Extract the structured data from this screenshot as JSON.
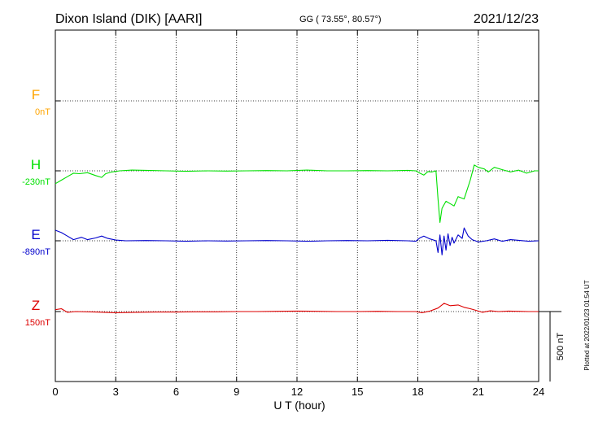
{
  "header": {
    "station": "Dixon Island (DIK)  [AARI]",
    "coords": "GG ( 73.55°,  80.57°)",
    "date": "2021/12/23"
  },
  "scale_label": "500 nT",
  "plotted_note": "Plotted at 2022/01/23 01:54 UT",
  "colors": {
    "F": "#ffa500",
    "H": "#00e000",
    "E": "#0000cc",
    "Z": "#dd0000",
    "grid": "#000000"
  },
  "chart_data": {
    "type": "line",
    "xlabel": "U T (hour)",
    "xlim": [
      0,
      24
    ],
    "x_ticks": [
      0,
      3,
      6,
      9,
      12,
      15,
      18,
      21,
      24
    ],
    "y_unit": "nT",
    "y_range_nT": 1500,
    "grid": true,
    "series": [
      {
        "key": "F",
        "name": "F",
        "baseline_label": "0nT",
        "baseline_nT": 0,
        "color": "#ffa500",
        "points": []
      },
      {
        "key": "H",
        "name": "H",
        "baseline_label": "-230nT",
        "baseline_nT": -230,
        "color": "#00e000",
        "points": [
          [
            0,
            -55
          ],
          [
            0.3,
            -40
          ],
          [
            0.6,
            -25
          ],
          [
            0.9,
            -10
          ],
          [
            1.2,
            -12
          ],
          [
            1.6,
            -8
          ],
          [
            2.0,
            -20
          ],
          [
            2.3,
            -28
          ],
          [
            2.5,
            -12
          ],
          [
            2.8,
            -5
          ],
          [
            3.2,
            0
          ],
          [
            3.8,
            3
          ],
          [
            4.5,
            2
          ],
          [
            5.5,
            0
          ],
          [
            6.5,
            -2
          ],
          [
            7.5,
            0
          ],
          [
            8.5,
            -1
          ],
          [
            9.5,
            0
          ],
          [
            10.5,
            1
          ],
          [
            11.5,
            0
          ],
          [
            12.5,
            3
          ],
          [
            13.5,
            0
          ],
          [
            14.5,
            0
          ],
          [
            15.5,
            1
          ],
          [
            16.5,
            0
          ],
          [
            17.5,
            2
          ],
          [
            17.9,
            0
          ],
          [
            18.1,
            -10
          ],
          [
            18.3,
            -18
          ],
          [
            18.5,
            -3
          ],
          [
            18.7,
            -5
          ],
          [
            18.9,
            0
          ],
          [
            19.0,
            -120
          ],
          [
            19.1,
            -220
          ],
          [
            19.2,
            -160
          ],
          [
            19.4,
            -130
          ],
          [
            19.6,
            -140
          ],
          [
            19.8,
            -150
          ],
          [
            20.0,
            -110
          ],
          [
            20.3,
            -120
          ],
          [
            20.6,
            -40
          ],
          [
            20.8,
            25
          ],
          [
            21.0,
            15
          ],
          [
            21.3,
            8
          ],
          [
            21.5,
            -5
          ],
          [
            21.8,
            15
          ],
          [
            22.2,
            5
          ],
          [
            22.6,
            -5
          ],
          [
            23.0,
            3
          ],
          [
            23.4,
            -10
          ],
          [
            23.8,
            0
          ],
          [
            24,
            0
          ]
        ]
      },
      {
        "key": "E",
        "name": "E",
        "baseline_label": "-890nT",
        "baseline_nT": -890,
        "color": "#0000cc",
        "points": [
          [
            0,
            45
          ],
          [
            0.3,
            35
          ],
          [
            0.6,
            20
          ],
          [
            0.9,
            5
          ],
          [
            1.3,
            15
          ],
          [
            1.6,
            5
          ],
          [
            2.0,
            12
          ],
          [
            2.3,
            20
          ],
          [
            2.6,
            10
          ],
          [
            3.0,
            3
          ],
          [
            3.5,
            0
          ],
          [
            4.5,
            1
          ],
          [
            5.5,
            0
          ],
          [
            6.5,
            -2
          ],
          [
            7.5,
            0
          ],
          [
            8.5,
            -1
          ],
          [
            9.5,
            0
          ],
          [
            10.5,
            1
          ],
          [
            11.5,
            0
          ],
          [
            12.5,
            -2
          ],
          [
            13.5,
            0
          ],
          [
            14.5,
            1
          ],
          [
            15.5,
            0
          ],
          [
            16.5,
            2
          ],
          [
            17.5,
            0
          ],
          [
            17.9,
            -2
          ],
          [
            18.1,
            12
          ],
          [
            18.3,
            20
          ],
          [
            18.6,
            8
          ],
          [
            18.9,
            0
          ],
          [
            19.0,
            -50
          ],
          [
            19.1,
            25
          ],
          [
            19.2,
            -60
          ],
          [
            19.3,
            20
          ],
          [
            19.4,
            -40
          ],
          [
            19.5,
            30
          ],
          [
            19.6,
            -20
          ],
          [
            19.7,
            15
          ],
          [
            19.8,
            -10
          ],
          [
            20.0,
            25
          ],
          [
            20.2,
            10
          ],
          [
            20.3,
            55
          ],
          [
            20.5,
            20
          ],
          [
            20.7,
            5
          ],
          [
            21.0,
            -5
          ],
          [
            21.4,
            0
          ],
          [
            21.8,
            8
          ],
          [
            22.2,
            -2
          ],
          [
            22.6,
            5
          ],
          [
            23.0,
            2
          ],
          [
            23.5,
            -2
          ],
          [
            24,
            0
          ]
        ]
      },
      {
        "key": "Z",
        "name": "Z",
        "baseline_label": "150nT",
        "baseline_nT": 150,
        "color": "#dd0000",
        "points": [
          [
            0,
            8
          ],
          [
            0.3,
            12
          ],
          [
            0.6,
            -3
          ],
          [
            1.0,
            0
          ],
          [
            2.0,
            -2
          ],
          [
            3.0,
            -5
          ],
          [
            4.0,
            -3
          ],
          [
            5.0,
            -2
          ],
          [
            6.0,
            -2
          ],
          [
            7.0,
            -1
          ],
          [
            8.0,
            -1
          ],
          [
            9.0,
            0
          ],
          [
            10.0,
            0
          ],
          [
            11.0,
            1
          ],
          [
            12.0,
            2
          ],
          [
            13.0,
            1
          ],
          [
            14.0,
            0
          ],
          [
            15.0,
            0
          ],
          [
            16.0,
            1
          ],
          [
            17.0,
            0
          ],
          [
            17.9,
            0
          ],
          [
            18.2,
            -5
          ],
          [
            18.6,
            2
          ],
          [
            19.0,
            15
          ],
          [
            19.3,
            35
          ],
          [
            19.6,
            25
          ],
          [
            20.0,
            28
          ],
          [
            20.3,
            18
          ],
          [
            20.6,
            12
          ],
          [
            20.9,
            5
          ],
          [
            21.2,
            -3
          ],
          [
            21.6,
            3
          ],
          [
            22.0,
            0
          ],
          [
            22.5,
            2
          ],
          [
            23.0,
            1
          ],
          [
            23.5,
            0
          ],
          [
            24,
            0
          ]
        ]
      }
    ]
  }
}
